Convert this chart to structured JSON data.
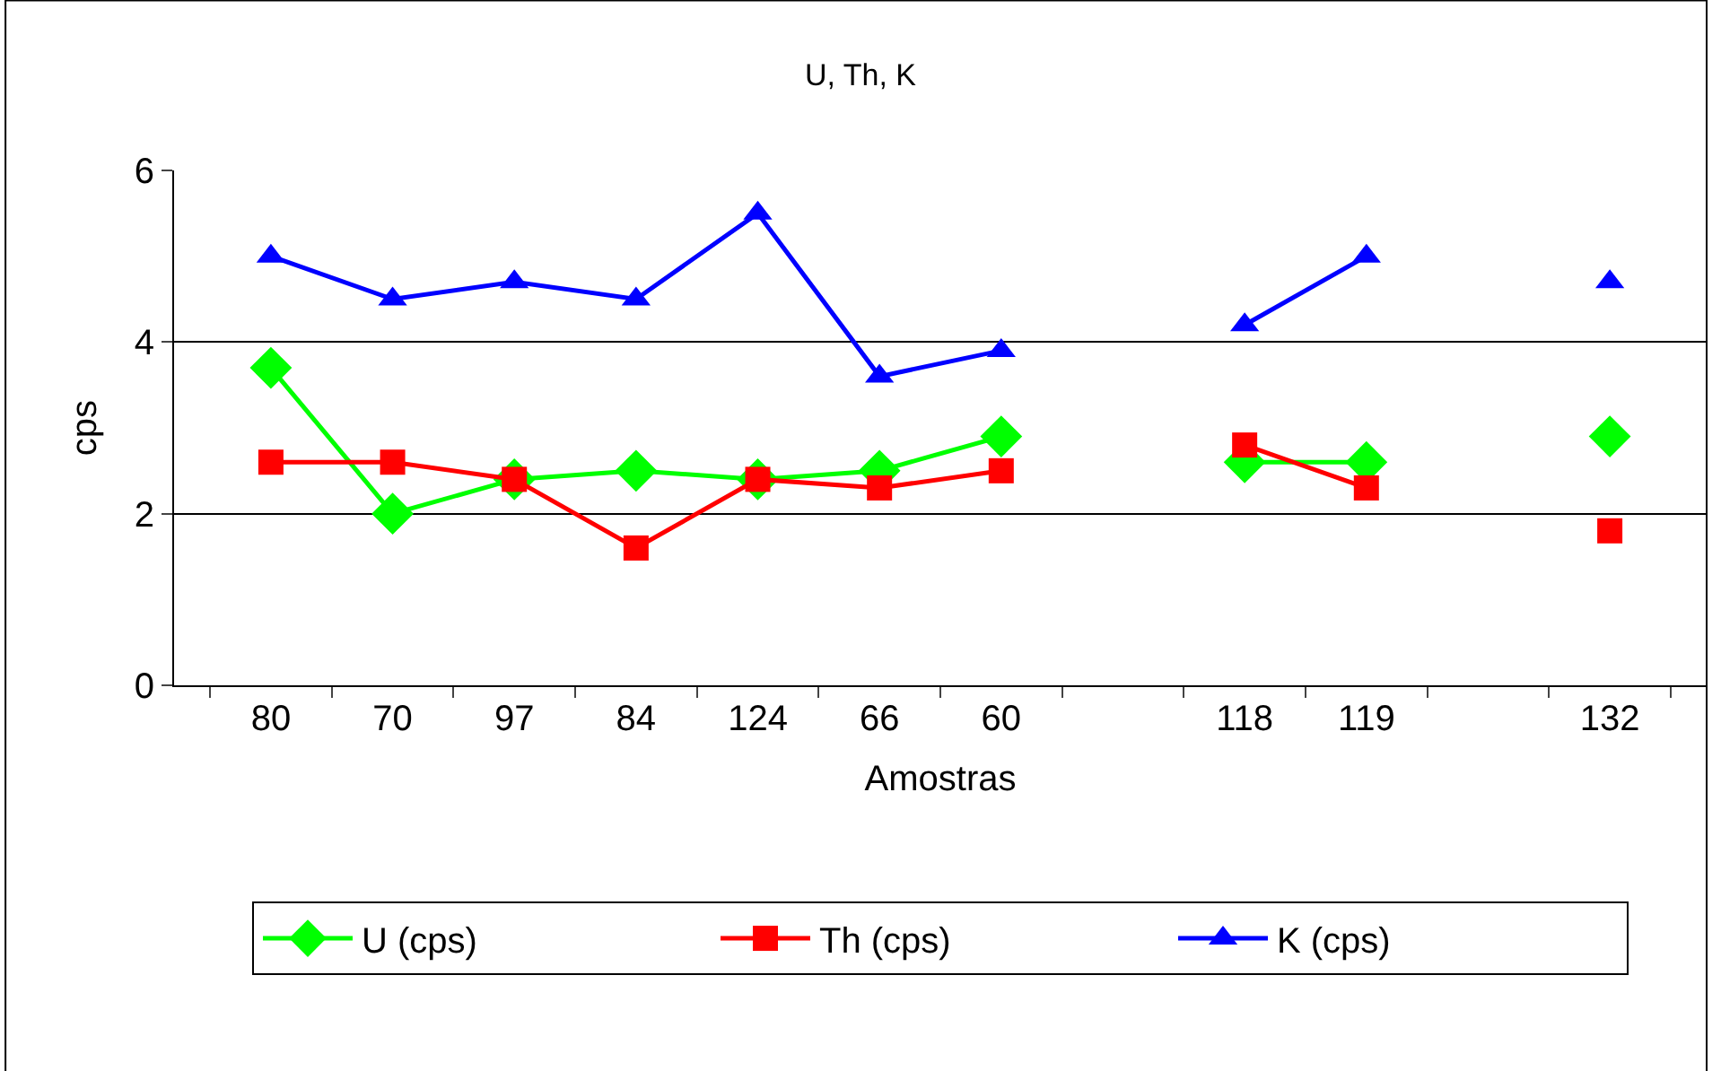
{
  "chart_data": {
    "type": "line",
    "title": "U, Th, K",
    "xlabel": "Amostras",
    "ylabel": "cps",
    "categories": [
      "80",
      "70",
      "97",
      "84",
      "124",
      "66",
      "60",
      null,
      "118",
      "119",
      null,
      "132"
    ],
    "series": [
      {
        "name": "U (cps)",
        "color": "#00ff00",
        "marker": "diamond",
        "values": [
          3.7,
          2.0,
          2.4,
          2.5,
          2.4,
          2.5,
          2.9,
          null,
          2.6,
          2.6,
          null,
          2.9
        ]
      },
      {
        "name": "Th (cps)",
        "color": "#ff0000",
        "marker": "square",
        "values": [
          2.6,
          2.6,
          2.4,
          1.6,
          2.4,
          2.3,
          2.5,
          null,
          2.8,
          2.3,
          null,
          1.8
        ]
      },
      {
        "name": "K (cps)",
        "color": "#0000ff",
        "marker": "triangle",
        "values": [
          5.0,
          4.5,
          4.7,
          4.5,
          5.5,
          3.6,
          3.9,
          null,
          4.2,
          5.0,
          null,
          4.7
        ]
      }
    ],
    "ylim": [
      0,
      6
    ],
    "yticks": [
      0,
      2,
      4,
      6
    ],
    "grid": "y",
    "legend": "bottom",
    "line_style": "solid"
  }
}
